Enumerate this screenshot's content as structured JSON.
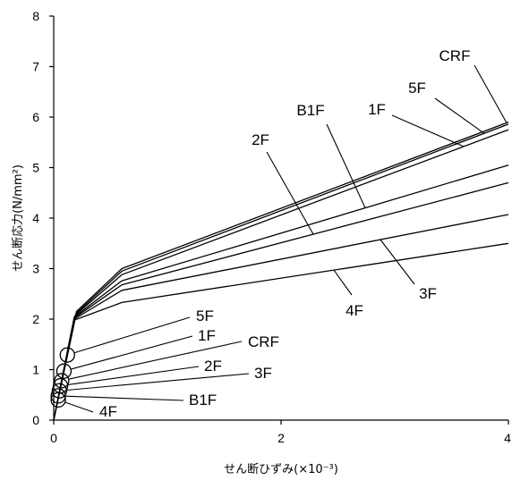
{
  "chart_data": {
    "type": "line",
    "title": "",
    "xlabel": "せん断ひずみ(×10⁻³)",
    "ylabel": "せん断応力(N/mm²)",
    "xlim": [
      0,
      4
    ],
    "ylim": [
      0,
      8
    ],
    "x_ticks": [
      0,
      2,
      4
    ],
    "y_ticks": [
      0,
      1,
      2,
      3,
      4,
      5,
      6,
      7,
      8
    ],
    "grid": false,
    "legend": "none (inline labels)",
    "line_color": "#000000",
    "series": [
      {
        "name": "CRF",
        "points": [
          [
            0,
            0
          ],
          [
            0.2,
            2.15
          ],
          [
            0.6,
            3.0
          ],
          [
            4,
            5.9
          ]
        ],
        "crack_point": [
          0.07,
          0.78
        ]
      },
      {
        "name": "5F",
        "points": [
          [
            0,
            0
          ],
          [
            0.2,
            2.12
          ],
          [
            0.6,
            2.95
          ],
          [
            4,
            5.86
          ]
        ],
        "crack_point": [
          0.12,
          1.29
        ]
      },
      {
        "name": "1F",
        "points": [
          [
            0,
            0
          ],
          [
            0.19,
            2.08
          ],
          [
            0.6,
            2.88
          ],
          [
            4,
            5.75
          ]
        ],
        "crack_point": [
          0.09,
          0.97
        ]
      },
      {
        "name": "B1F",
        "points": [
          [
            0,
            0
          ],
          [
            0.18,
            2.04
          ],
          [
            0.6,
            2.76
          ],
          [
            4,
            5.05
          ]
        ],
        "crack_point": [
          0.04,
          0.48
        ]
      },
      {
        "name": "2F",
        "points": [
          [
            0,
            0
          ],
          [
            0.18,
            2.02
          ],
          [
            0.6,
            2.68
          ],
          [
            4,
            4.7
          ]
        ],
        "crack_point": [
          0.06,
          0.68
        ]
      },
      {
        "name": "3F",
        "points": [
          [
            0,
            0
          ],
          [
            0.18,
            2.0
          ],
          [
            0.6,
            2.57
          ],
          [
            4,
            4.07
          ]
        ],
        "crack_point": [
          0.05,
          0.58
        ]
      },
      {
        "name": "4F",
        "points": [
          [
            0,
            0
          ],
          [
            0.18,
            1.98
          ],
          [
            0.6,
            2.33
          ],
          [
            4,
            3.5
          ]
        ],
        "crack_point": [
          0.04,
          0.4
        ]
      }
    ]
  }
}
